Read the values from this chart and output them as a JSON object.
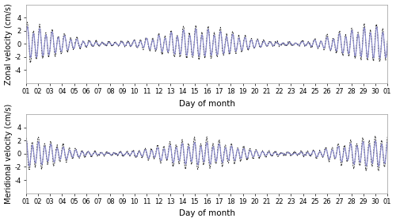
{
  "ylabel_top": "Zonal velocity (cm/s)",
  "ylabel_bottom": "Meridional velocity (cm/s)",
  "xlabel": "Day of month",
  "ylim": [
    -6,
    6
  ],
  "yticks": [
    -4,
    -2,
    0,
    2,
    4
  ],
  "xtick_labels": [
    "01",
    "02",
    "03",
    "04",
    "05",
    "06",
    "07",
    "08",
    "09",
    "10",
    "11",
    "12",
    "13",
    "14",
    "15",
    "16",
    "17",
    "18",
    "19",
    "20",
    "21",
    "22",
    "23",
    "24",
    "25",
    "26",
    "27",
    "28",
    "29",
    "30",
    "01"
  ],
  "blue_color": "#8888cc",
  "black_color": "#222222",
  "background_color": "#ffffff",
  "figsize": [
    5.0,
    2.8
  ],
  "dpi": 100
}
